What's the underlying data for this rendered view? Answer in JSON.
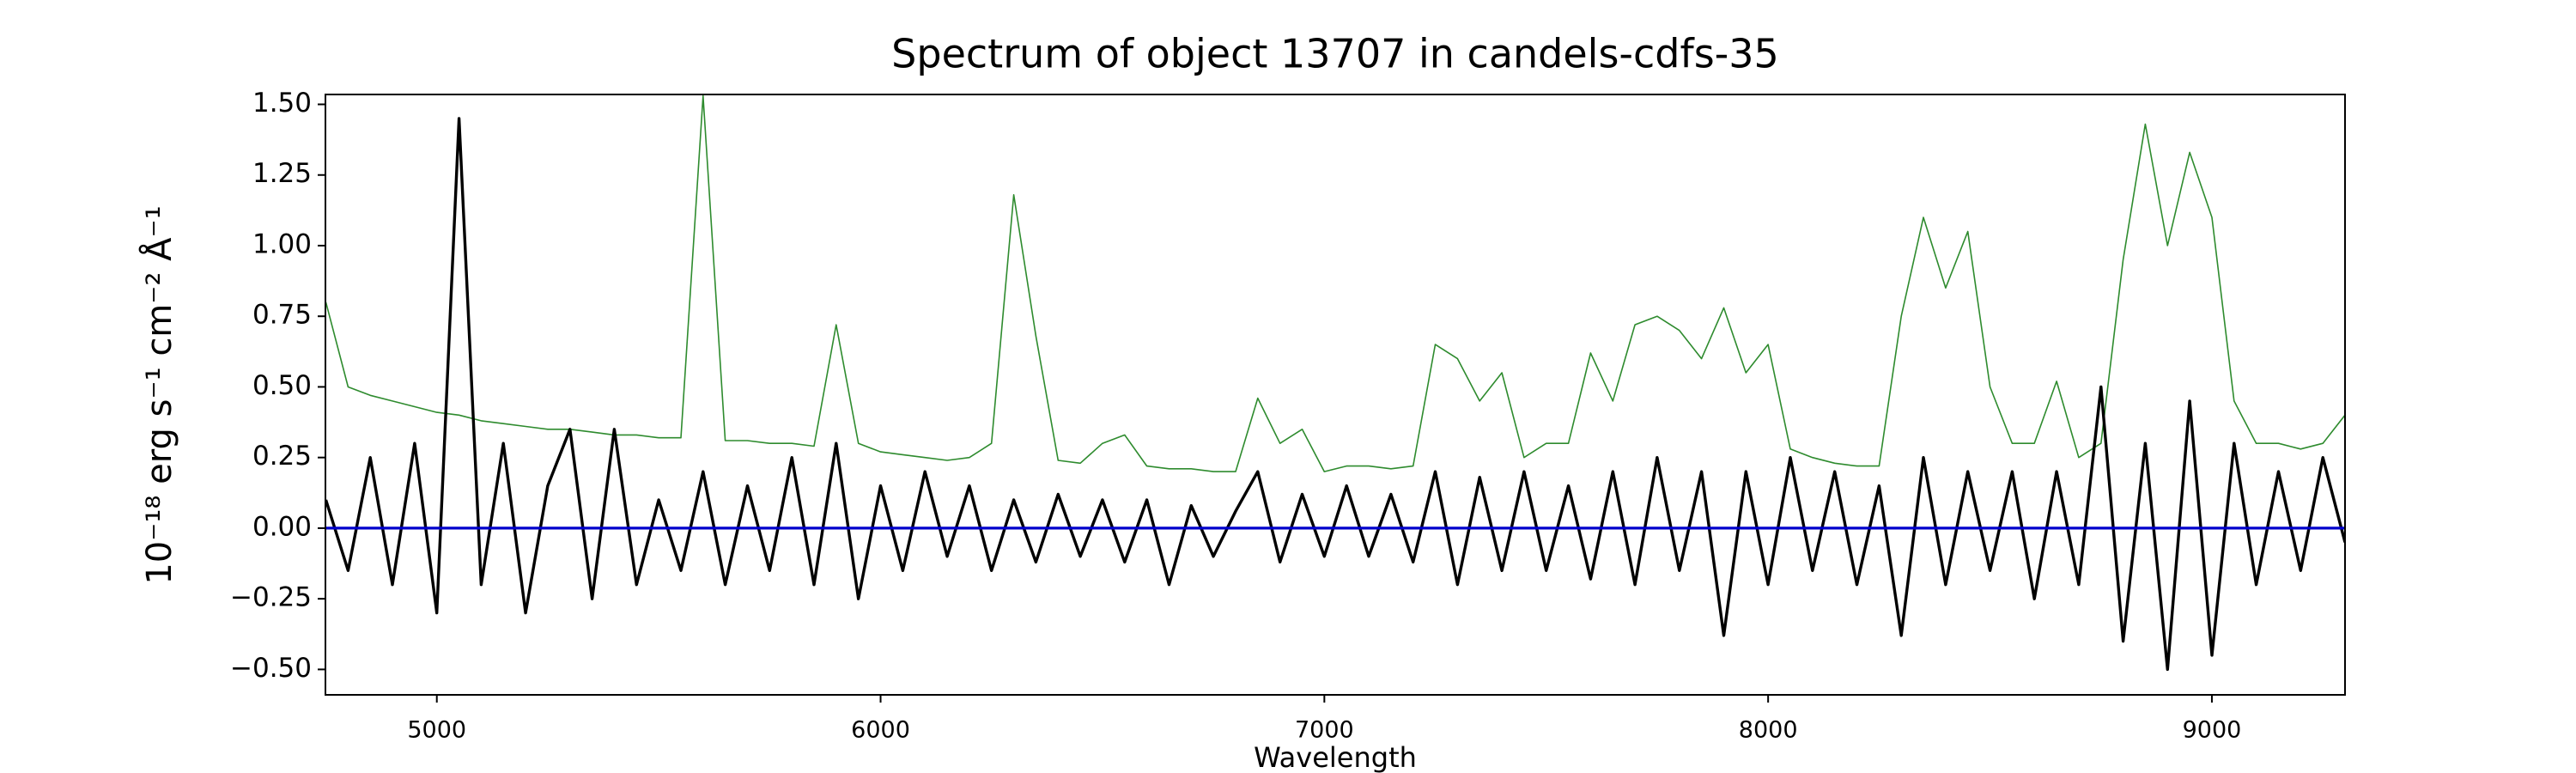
{
  "chart_data": {
    "type": "line",
    "title": "Spectrum of object 13707 in candels-cdfs-35",
    "x_label": "Wavelength",
    "y_label": "10⁻¹⁸ erg s⁻¹ cm⁻² Å⁻¹",
    "x": [
      4750,
      4800,
      4850,
      4900,
      4950,
      5000,
      5050,
      5100,
      5150,
      5200,
      5250,
      5300,
      5350,
      5400,
      5450,
      5500,
      5550,
      5600,
      5650,
      5700,
      5750,
      5800,
      5850,
      5900,
      5950,
      6000,
      6050,
      6100,
      6150,
      6200,
      6250,
      6300,
      6350,
      6400,
      6450,
      6500,
      6550,
      6600,
      6650,
      6700,
      6750,
      6800,
      6850,
      6900,
      6950,
      7000,
      7050,
      7100,
      7150,
      7200,
      7250,
      7300,
      7350,
      7400,
      7450,
      7500,
      7550,
      7600,
      7650,
      7700,
      7750,
      7800,
      7850,
      7900,
      7950,
      8000,
      8050,
      8100,
      8150,
      8200,
      8250,
      8300,
      8350,
      8400,
      8450,
      8500,
      8550,
      8600,
      8650,
      8700,
      8750,
      8800,
      8850,
      8900,
      8950,
      9000,
      9050,
      9100,
      9150,
      9200,
      9250,
      9300
    ],
    "series": [
      {
        "color": "#2e8b2e",
        "width": 1.6,
        "values": [
          0.8,
          0.5,
          0.47,
          0.45,
          0.43,
          0.41,
          0.4,
          0.38,
          0.37,
          0.36,
          0.35,
          0.35,
          0.34,
          0.33,
          0.33,
          0.32,
          0.32,
          1.53,
          0.31,
          0.31,
          0.3,
          0.3,
          0.29,
          0.72,
          0.3,
          0.27,
          0.26,
          0.25,
          0.24,
          0.25,
          0.3,
          1.18,
          0.68,
          0.24,
          0.23,
          0.3,
          0.33,
          0.22,
          0.21,
          0.21,
          0.2,
          0.2,
          0.46,
          0.3,
          0.35,
          0.2,
          0.22,
          0.22,
          0.21,
          0.22,
          0.65,
          0.6,
          0.45,
          0.55,
          0.25,
          0.3,
          0.3,
          0.62,
          0.45,
          0.72,
          0.75,
          0.7,
          0.6,
          0.78,
          0.55,
          0.65,
          0.28,
          0.25,
          0.23,
          0.22,
          0.22,
          0.75,
          1.1,
          0.85,
          1.05,
          0.5,
          0.3,
          0.3,
          0.52,
          0.25,
          0.3,
          0.95,
          1.43,
          1.0,
          1.33,
          1.1,
          0.45,
          0.3,
          0.3,
          0.28,
          0.3,
          0.4
        ]
      },
      {
        "color": "#000000",
        "width": 3.4,
        "values": [
          0.1,
          -0.15,
          0.25,
          -0.2,
          0.3,
          -0.3,
          1.45,
          -0.2,
          0.3,
          -0.3,
          0.15,
          0.35,
          -0.25,
          0.35,
          -0.2,
          0.1,
          -0.15,
          0.2,
          -0.2,
          0.15,
          -0.15,
          0.25,
          -0.2,
          0.3,
          -0.25,
          0.15,
          -0.15,
          0.2,
          -0.1,
          0.15,
          -0.15,
          0.1,
          -0.12,
          0.12,
          -0.1,
          0.1,
          -0.12,
          0.1,
          -0.2,
          0.08,
          -0.1,
          0.06,
          0.2,
          -0.12,
          0.12,
          -0.1,
          0.15,
          -0.1,
          0.12,
          -0.12,
          0.2,
          -0.2,
          0.18,
          -0.15,
          0.2,
          -0.15,
          0.15,
          -0.18,
          0.2,
          -0.2,
          0.25,
          -0.15,
          0.2,
          -0.38,
          0.2,
          -0.2,
          0.25,
          -0.15,
          0.2,
          -0.2,
          0.15,
          -0.38,
          0.25,
          -0.2,
          0.2,
          -0.15,
          0.2,
          -0.25,
          0.2,
          -0.2,
          0.5,
          -0.4,
          0.3,
          -0.5,
          0.45,
          -0.45,
          0.3,
          -0.2,
          0.2,
          -0.15,
          0.25,
          -0.05
        ]
      },
      {
        "color": "#0000cc",
        "width": 3.2,
        "values": [
          0,
          0,
          0,
          0,
          0,
          0,
          0,
          0,
          0,
          0,
          0,
          0,
          0,
          0,
          0,
          0,
          0,
          0,
          0,
          0,
          0,
          0,
          0,
          0,
          0,
          0,
          0,
          0,
          0,
          0,
          0,
          0,
          0,
          0,
          0,
          0,
          0,
          0,
          0,
          0,
          0,
          0,
          0,
          0,
          0,
          0,
          0,
          0,
          0,
          0,
          0,
          0,
          0,
          0,
          0,
          0,
          0,
          0,
          0,
          0,
          0,
          0,
          0,
          0,
          0,
          0,
          0,
          0,
          0,
          0,
          0,
          0,
          0,
          0,
          0,
          0,
          0,
          0,
          0,
          0,
          0,
          0,
          0,
          0,
          0,
          0,
          0,
          0,
          0,
          0,
          0,
          0
        ]
      }
    ],
    "xlim": [
      4749,
      9300
    ],
    "ylim": [
      -0.59,
      1.535
    ],
    "xticks": [
      5000,
      6000,
      7000,
      8000,
      9000
    ],
    "yticks": [
      {
        "value": -0.5,
        "label": "−0.50"
      },
      {
        "value": -0.25,
        "label": "−0.25"
      },
      {
        "value": 0,
        "label": "0.00"
      },
      {
        "value": 0.25,
        "label": "0.25"
      },
      {
        "value": 0.5,
        "label": "0.50"
      },
      {
        "value": 0.75,
        "label": "0.75"
      },
      {
        "value": 1,
        "label": "1.00"
      },
      {
        "value": 1.25,
        "label": "1.25"
      },
      {
        "value": 1.5,
        "label": "1.50"
      }
    ],
    "grid": false
  }
}
